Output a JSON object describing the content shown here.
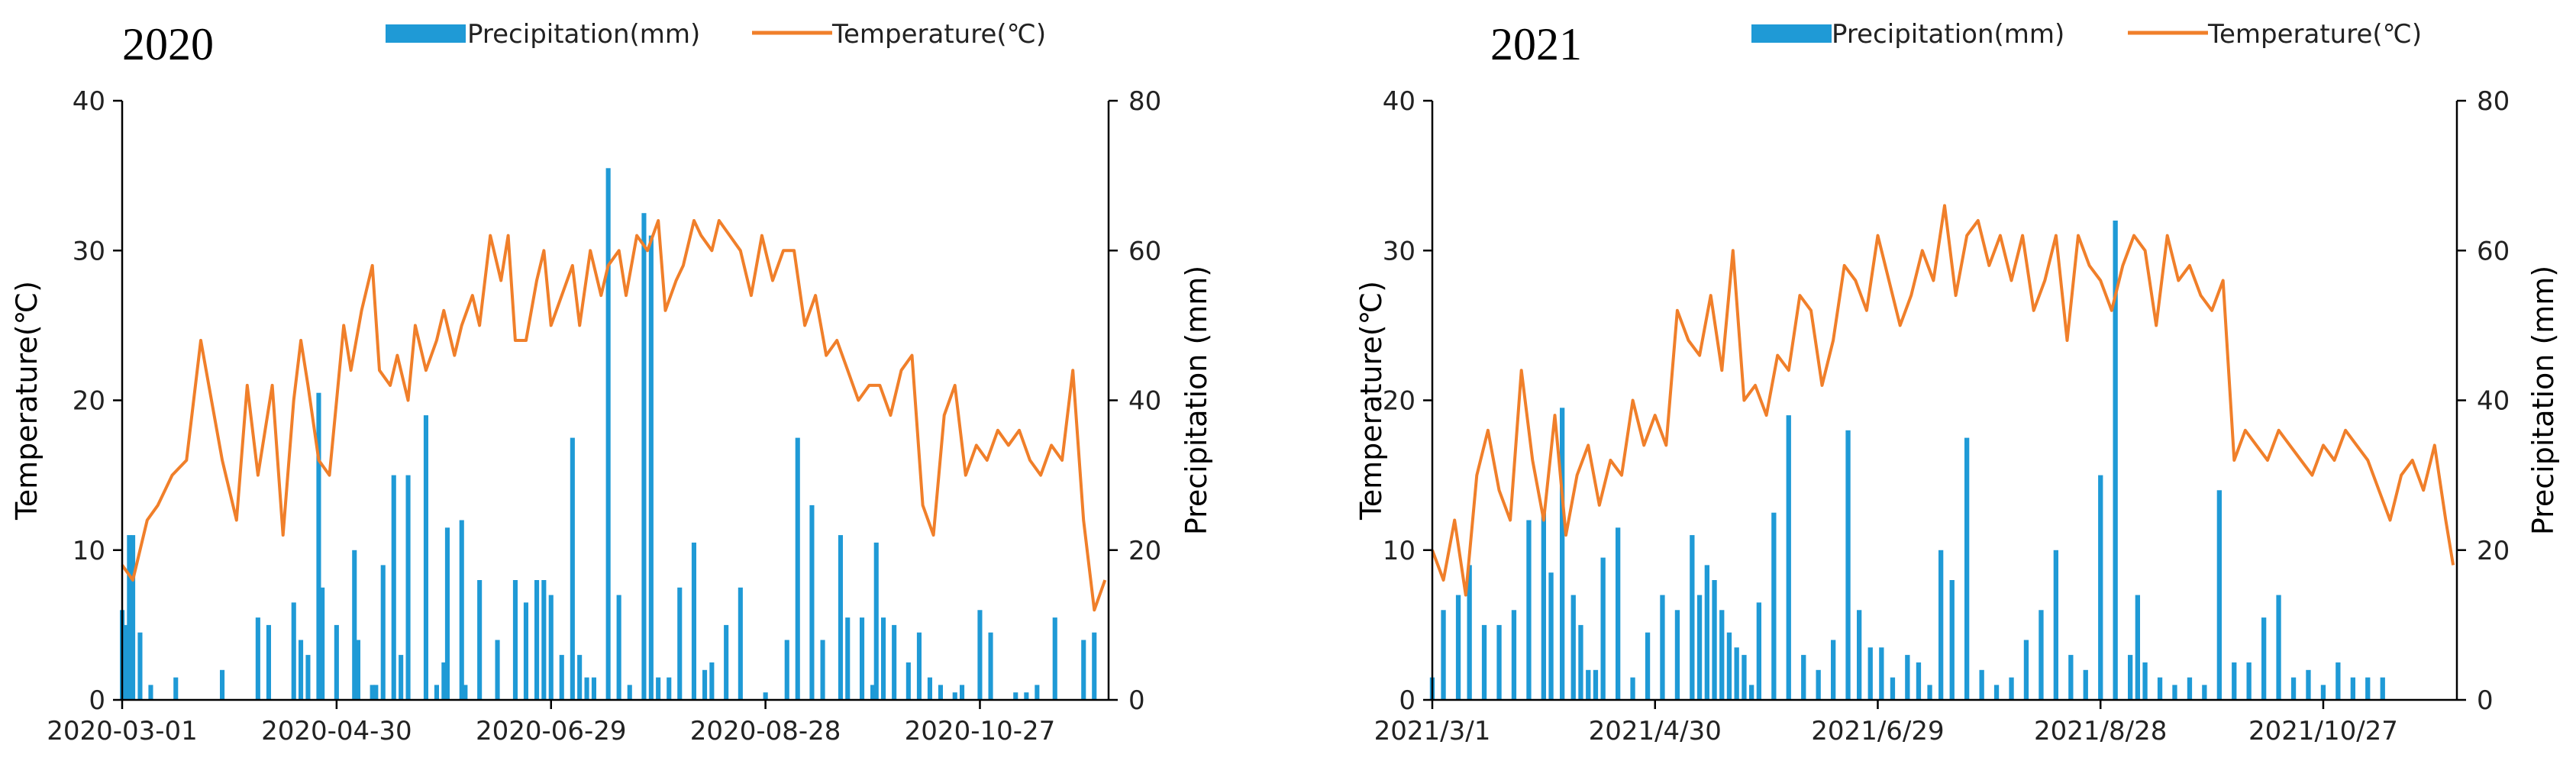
{
  "chart_data": [
    {
      "type": "bar+line",
      "title": "2020",
      "legend": [
        "Precipitation(mm)",
        "Temperature(℃)"
      ],
      "legend_placement": "top",
      "ylabel_left": "Temperature(℃)",
      "ylabel_right": "Precipitation (mm)",
      "ylim_left": [
        0,
        40
      ],
      "ylim_right": [
        0,
        80
      ],
      "yticks_left": [
        "0",
        "10",
        "20",
        "30",
        "40"
      ],
      "yticks_right": [
        "0",
        "20",
        "40",
        "60",
        "80"
      ],
      "xticks": [
        "2020-03-01",
        "2020-04-30",
        "2020-06-29",
        "2020-08-28",
        "2020-10-27"
      ],
      "days": 276,
      "colors": {
        "precipitation": "#1f9ad6",
        "temperature": "#f07f2a"
      },
      "temperature_series": {
        "days": [
          0,
          3,
          7,
          10,
          14,
          18,
          22,
          25,
          28,
          32,
          35,
          38,
          42,
          45,
          48,
          50,
          52,
          55,
          58,
          60,
          62,
          64,
          67,
          70,
          72,
          75,
          77,
          80,
          82,
          85,
          88,
          90,
          93,
          95,
          98,
          100,
          103,
          106,
          108,
          110,
          113,
          116,
          118,
          120,
          123,
          126,
          128,
          131,
          134,
          136,
          139,
          141,
          144,
          147,
          150,
          152,
          155,
          157,
          160,
          162,
          165,
          167,
          170,
          173,
          176,
          179,
          182,
          185,
          188,
          191,
          194,
          197,
          200,
          203,
          206,
          209,
          212,
          215,
          218,
          221,
          224,
          227,
          230,
          233,
          236,
          239,
          242,
          245,
          248,
          251,
          254,
          257,
          260,
          263,
          266,
          269,
          272,
          275
        ],
        "values": [
          9,
          8,
          12,
          13,
          15,
          16,
          24,
          20,
          16,
          12,
          21,
          15,
          21,
          11,
          20,
          24,
          21,
          16,
          15,
          20,
          25,
          22,
          26,
          29,
          22,
          21,
          23,
          20,
          25,
          22,
          24,
          26,
          23,
          25,
          27,
          25,
          31,
          28,
          31,
          24,
          24,
          28,
          30,
          25,
          27,
          29,
          25,
          30,
          27,
          29,
          30,
          27,
          31,
          30,
          32,
          26,
          28,
          29,
          32,
          31,
          30,
          32,
          31,
          30,
          27,
          31,
          28,
          30,
          30,
          25,
          27,
          23,
          24,
          22,
          20,
          21,
          21,
          19,
          22,
          23,
          13,
          11,
          19,
          21,
          15,
          17,
          16,
          18,
          17,
          18,
          16,
          15,
          17,
          16,
          22,
          12,
          6,
          8
        ]
      },
      "precipitation_series": {
        "days": [
          0,
          1,
          2,
          3,
          5,
          8,
          15,
          28,
          38,
          41,
          48,
          50,
          52,
          55,
          56,
          60,
          65,
          66,
          70,
          71,
          73,
          76,
          78,
          80,
          85,
          88,
          90,
          91,
          95,
          96,
          100,
          105,
          110,
          113,
          116,
          118,
          120,
          123,
          126,
          128,
          130,
          132,
          136,
          139,
          142,
          146,
          148,
          150,
          153,
          156,
          160,
          163,
          165,
          169,
          173,
          180,
          186,
          189,
          193,
          196,
          201,
          203,
          207,
          210,
          211,
          213,
          216,
          220,
          223,
          226,
          229,
          233,
          235,
          240,
          243,
          250,
          253,
          256,
          261,
          269,
          272
        ],
        "values": [
          12,
          10,
          22,
          22,
          9,
          2,
          3,
          4,
          11,
          10,
          13,
          8,
          6,
          41,
          15,
          10,
          20,
          8,
          2,
          2,
          18,
          30,
          6,
          30,
          38,
          2,
          5,
          23,
          24,
          2,
          16,
          8,
          16,
          13,
          16,
          16,
          14,
          6,
          35,
          6,
          3,
          3,
          71,
          14,
          2,
          65,
          62,
          3,
          3,
          15,
          21,
          4,
          5,
          10,
          15,
          1,
          8,
          35,
          26,
          8,
          22,
          11,
          11,
          2,
          21,
          11,
          10,
          5,
          9,
          3,
          2,
          1,
          2,
          12,
          9,
          1,
          1,
          2,
          11,
          8,
          9
        ]
      }
    },
    {
      "type": "bar+line",
      "title": "2021",
      "legend": [
        "Precipitation(mm)",
        "Temperature(℃)"
      ],
      "legend_placement": "top",
      "ylabel_left": "Temperature(℃)",
      "ylabel_right": "Precipitation (mm)",
      "ylim_left": [
        0,
        40
      ],
      "ylim_right": [
        0,
        80
      ],
      "yticks_left": [
        "0",
        "10",
        "20",
        "30",
        "40"
      ],
      "yticks_right": [
        "0",
        "20",
        "40",
        "60",
        "80"
      ],
      "xticks": [
        "2021/3/1",
        "2021/4/30",
        "2021/6/29",
        "2021/8/28",
        "2021/10/27"
      ],
      "days": 276,
      "colors": {
        "precipitation": "#1f9ad6",
        "temperature": "#f07f2a"
      },
      "temperature_series": {
        "days": [
          0,
          3,
          6,
          9,
          12,
          15,
          18,
          21,
          24,
          27,
          30,
          33,
          36,
          39,
          42,
          45,
          48,
          51,
          54,
          57,
          60,
          63,
          66,
          69,
          72,
          75,
          78,
          81,
          84,
          87,
          90,
          93,
          96,
          99,
          102,
          105,
          108,
          111,
          114,
          117,
          120,
          123,
          126,
          129,
          132,
          135,
          138,
          141,
          144,
          147,
          150,
          153,
          156,
          159,
          162,
          165,
          168,
          171,
          174,
          177,
          180,
          183,
          186,
          189,
          192,
          195,
          198,
          201,
          204,
          207,
          210,
          213,
          216,
          219,
          222,
          225,
          228,
          231,
          234,
          237,
          240,
          243,
          246,
          249,
          252,
          255,
          258,
          261,
          264,
          267,
          270,
          273,
          275
        ],
        "values": [
          10,
          8,
          12,
          7,
          15,
          18,
          14,
          12,
          22,
          16,
          12,
          19,
          11,
          15,
          17,
          13,
          16,
          15,
          20,
          17,
          19,
          17,
          26,
          24,
          23,
          27,
          22,
          30,
          20,
          21,
          19,
          23,
          22,
          27,
          26,
          21,
          24,
          29,
          28,
          26,
          31,
          28,
          25,
          27,
          30,
          28,
          33,
          27,
          31,
          32,
          29,
          31,
          28,
          31,
          26,
          28,
          31,
          24,
          31,
          29,
          28,
          26,
          29,
          31,
          30,
          25,
          31,
          28,
          29,
          27,
          26,
          28,
          16,
          18,
          17,
          16,
          18,
          17,
          16,
          15,
          17,
          16,
          18,
          17,
          16,
          14,
          12,
          15,
          16,
          14,
          17,
          12,
          9
        ]
      },
      "precipitation_series": {
        "days": [
          0,
          3,
          7,
          10,
          14,
          18,
          22,
          26,
          30,
          32,
          35,
          38,
          40,
          42,
          44,
          46,
          50,
          54,
          58,
          62,
          66,
          70,
          72,
          74,
          76,
          78,
          80,
          82,
          84,
          86,
          88,
          92,
          96,
          100,
          104,
          108,
          112,
          115,
          118,
          121,
          124,
          128,
          131,
          134,
          137,
          140,
          144,
          148,
          152,
          156,
          160,
          164,
          168,
          172,
          176,
          180,
          184,
          188,
          190,
          192,
          196,
          200,
          204,
          208,
          212,
          216,
          220,
          224,
          228,
          232,
          236,
          240,
          244,
          248,
          252,
          256
        ],
        "values": [
          3,
          12,
          14,
          18,
          10,
          10,
          12,
          24,
          25,
          17,
          39,
          14,
          10,
          4,
          4,
          19,
          23,
          3,
          9,
          14,
          12,
          22,
          14,
          18,
          16,
          12,
          9,
          7,
          6,
          2,
          13,
          25,
          38,
          6,
          4,
          8,
          36,
          12,
          7,
          7,
          3,
          6,
          5,
          2,
          20,
          16,
          35,
          4,
          2,
          3,
          8,
          12,
          20,
          6,
          4,
          30,
          64,
          6,
          14,
          5,
          3,
          2,
          3,
          2,
          28,
          5,
          5,
          11,
          14,
          3,
          4,
          2,
          5,
          3,
          3,
          3
        ]
      }
    }
  ]
}
